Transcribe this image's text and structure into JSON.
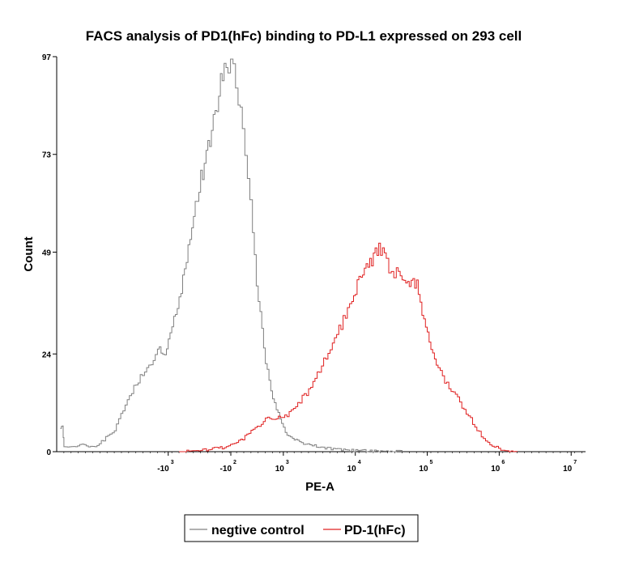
{
  "chart_data": {
    "type": "line",
    "title": "FACS analysis of PD1(hFc) binding to PD-L1 expressed on 293 cell",
    "xlabel": "PE-A",
    "ylabel": "Count",
    "ylim": [
      0,
      97
    ],
    "yticks": [
      {
        "label": "0",
        "value": 0
      },
      {
        "label": "24",
        "value": 24
      },
      {
        "label": "49",
        "value": 49
      },
      {
        "label": "73",
        "value": 73
      },
      {
        "label": "97",
        "value": 97
      }
    ],
    "x_scale": "biexponential",
    "xticks": [
      {
        "base": "-10",
        "exp": "3",
        "pos": 1.55
      },
      {
        "base": "-10",
        "exp": "2",
        "pos": 2.42
      },
      {
        "base": "10",
        "exp": "3",
        "pos": 3.15
      },
      {
        "base": "10",
        "exp": "4",
        "pos": 4.15
      },
      {
        "base": "10",
        "exp": "5",
        "pos": 5.15
      },
      {
        "base": "10",
        "exp": "6",
        "pos": 6.15
      },
      {
        "base": "10",
        "exp": "7",
        "pos": 7.15
      }
    ],
    "grid": false,
    "legend_position": "bottom",
    "series": [
      {
        "name": "negtive control",
        "color": "#808080",
        "x": [
          0.05,
          0.08,
          0.1,
          0.2,
          0.35,
          0.5,
          0.65,
          0.8,
          0.95,
          1.1,
          1.25,
          1.4,
          1.5,
          1.6,
          1.7,
          1.8,
          1.9,
          2.0,
          2.1,
          2.2,
          2.3,
          2.38,
          2.45,
          2.52,
          2.58,
          2.65,
          2.72,
          2.8,
          2.9,
          3.0,
          3.1,
          3.2,
          3.3,
          3.4,
          3.55,
          3.7,
          3.9,
          4.1,
          4.3,
          4.5,
          4.8
        ],
        "values": [
          6,
          6,
          1,
          1,
          2,
          1,
          3,
          5,
          12,
          17,
          20,
          25,
          24,
          31,
          38,
          47,
          57,
          67,
          75,
          84,
          92,
          96,
          94,
          88,
          80,
          68,
          52,
          37,
          22,
          13,
          8,
          4,
          3,
          2,
          1.5,
          1,
          0.6,
          0.3,
          0.2,
          0.1,
          0
        ]
      },
      {
        "name": "PD-1(hFc)",
        "color": "#e02020",
        "x": [
          1.7,
          2.0,
          2.3,
          2.5,
          2.7,
          2.9,
          3.05,
          3.2,
          3.35,
          3.5,
          3.65,
          3.8,
          3.95,
          4.1,
          4.2,
          4.3,
          4.4,
          4.5,
          4.58,
          4.65,
          4.72,
          4.8,
          4.9,
          5.0,
          5.1,
          5.2,
          5.3,
          5.45,
          5.6,
          5.75,
          5.9,
          6.05,
          6.2,
          6.4
        ],
        "values": [
          0,
          0.3,
          1,
          2,
          5,
          8,
          8,
          9,
          12,
          15,
          20,
          26,
          31,
          37,
          42,
          45,
          48,
          50,
          46,
          43,
          44,
          42,
          42,
          41,
          32,
          25,
          20,
          16,
          12,
          8,
          4,
          1.5,
          0.4,
          0
        ]
      }
    ]
  }
}
